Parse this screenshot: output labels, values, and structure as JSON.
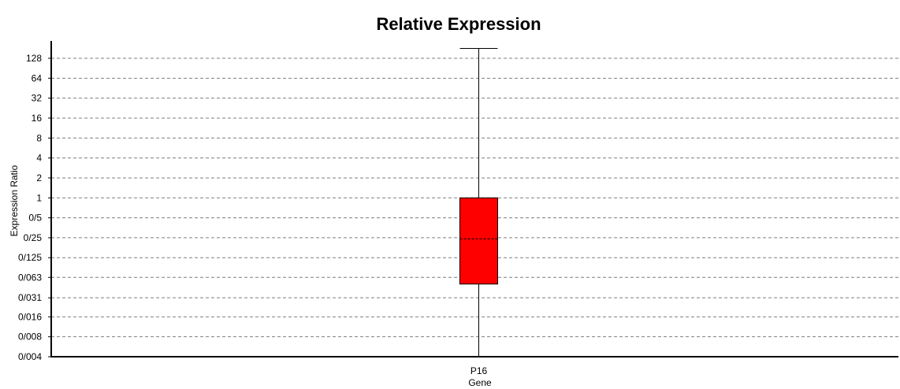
{
  "chart_data": {
    "type": "box",
    "title": "Relative Expression",
    "xlabel": "Gene",
    "ylabel": "Expression Ratio",
    "y_scale": "log2",
    "ylim": [
      0.004,
      180
    ],
    "y_ticks": [
      {
        "value": 128,
        "label": "128"
      },
      {
        "value": 64,
        "label": "64"
      },
      {
        "value": 32,
        "label": "32"
      },
      {
        "value": 16,
        "label": "16"
      },
      {
        "value": 8,
        "label": "8"
      },
      {
        "value": 4,
        "label": "4"
      },
      {
        "value": 2,
        "label": "2"
      },
      {
        "value": 1,
        "label": "1"
      },
      {
        "value": 0.5,
        "label": "0/5"
      },
      {
        "value": 0.25,
        "label": "0/25"
      },
      {
        "value": 0.125,
        "label": "0/125"
      },
      {
        "value": 0.063,
        "label": "0/063"
      },
      {
        "value": 0.031,
        "label": "0/031"
      },
      {
        "value": 0.016,
        "label": "0/016"
      },
      {
        "value": 0.008,
        "label": "0/008"
      },
      {
        "value": 0.004,
        "label": "0/004"
      }
    ],
    "grid": true,
    "legend": "none",
    "box_color": "#ff0000",
    "categories": [
      "P16"
    ],
    "boxes": [
      {
        "category": "P16",
        "whisker_low": 0.004,
        "q1": 0.05,
        "median": 0.24,
        "q3": 1.0,
        "whisker_high": 180
      }
    ]
  }
}
